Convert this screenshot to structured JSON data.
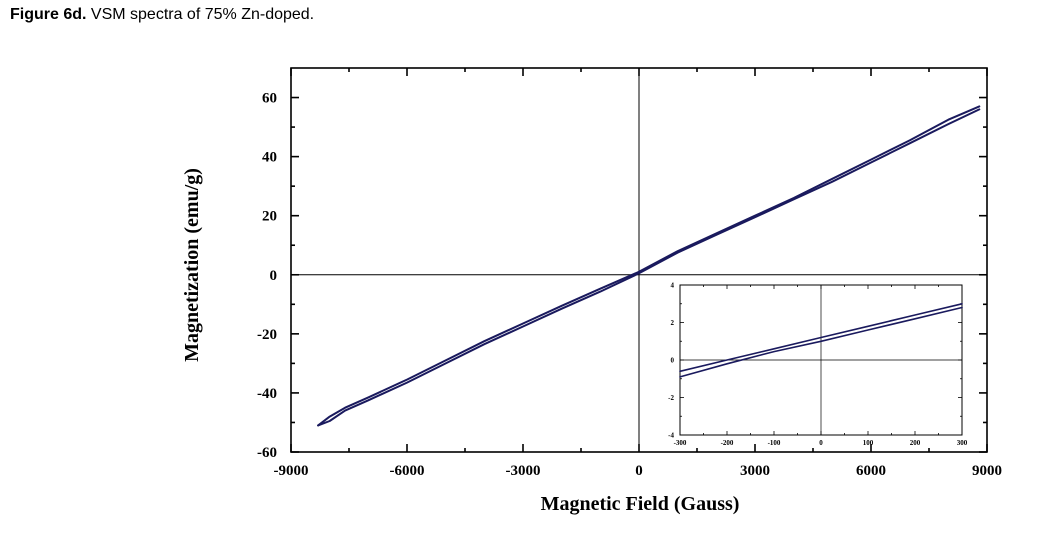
{
  "caption": {
    "lead": "Figure 6d.",
    "text": " VSM spectra of 75% Zn-doped."
  },
  "chart_data": [
    {
      "type": "line",
      "title": "",
      "xlabel": "Magnetic Field (Gauss)",
      "ylabel": "Magnetization (emu/g)",
      "xlim": [
        -9000,
        9000
      ],
      "ylim": [
        -60,
        70
      ],
      "xticks": [
        -9000,
        -6000,
        -3000,
        0,
        3000,
        6000,
        9000
      ],
      "yticks": [
        -60,
        -40,
        -20,
        0,
        20,
        40,
        60
      ],
      "grid": false,
      "zero_lines": true,
      "series": [
        {
          "color": "#1a1a5e",
          "x": [
            -8300,
            -8000,
            -7600,
            -7000,
            -6000,
            -5000,
            -4000,
            -3000,
            -2000,
            -1000,
            0,
            1000,
            2000,
            3000,
            4000,
            5000,
            6000,
            7000,
            8000,
            8800
          ],
          "y": [
            -51,
            -49.5,
            -46,
            -42.5,
            -36.5,
            -30,
            -23.5,
            -17.5,
            -11.5,
            -5.7,
            0.5,
            7.5,
            13.5,
            19.5,
            25.5,
            31.5,
            38,
            44.5,
            51,
            56
          ]
        },
        {
          "color": "#1a1a5e",
          "x": [
            -8300,
            -8000,
            -7600,
            -7000,
            -6000,
            -5000,
            -4000,
            -3000,
            -2000,
            -1000,
            0,
            1000,
            2000,
            3000,
            4000,
            5000,
            6000,
            7000,
            8000,
            8800
          ],
          "y": [
            -51,
            -48,
            -45,
            -41.5,
            -35.5,
            -29,
            -22.5,
            -16.5,
            -10.5,
            -4.7,
            1.0,
            8.0,
            14.0,
            20.0,
            26.0,
            32.5,
            39,
            45.5,
            52.5,
            57
          ]
        }
      ]
    },
    {
      "type": "line",
      "title": "",
      "xlabel": "",
      "ylabel": "",
      "xlim": [
        -300,
        300
      ],
      "ylim": [
        -4,
        4
      ],
      "xticks": [
        -300,
        -200,
        -100,
        0,
        100,
        200,
        300
      ],
      "yticks": [
        -4,
        -2,
        0,
        2,
        4
      ],
      "grid": false,
      "zero_lines": true,
      "series": [
        {
          "color": "#1a1a5e",
          "x": [
            -300,
            -200,
            -100,
            0,
            100,
            200,
            300
          ],
          "y": [
            -0.9,
            -0.2,
            0.45,
            1.0,
            1.6,
            2.2,
            2.8
          ]
        },
        {
          "color": "#1a1a5e",
          "x": [
            -300,
            -200,
            -100,
            0,
            100,
            200,
            300
          ],
          "y": [
            -0.6,
            0.0,
            0.6,
            1.2,
            1.8,
            2.4,
            3.0
          ]
        }
      ]
    }
  ]
}
